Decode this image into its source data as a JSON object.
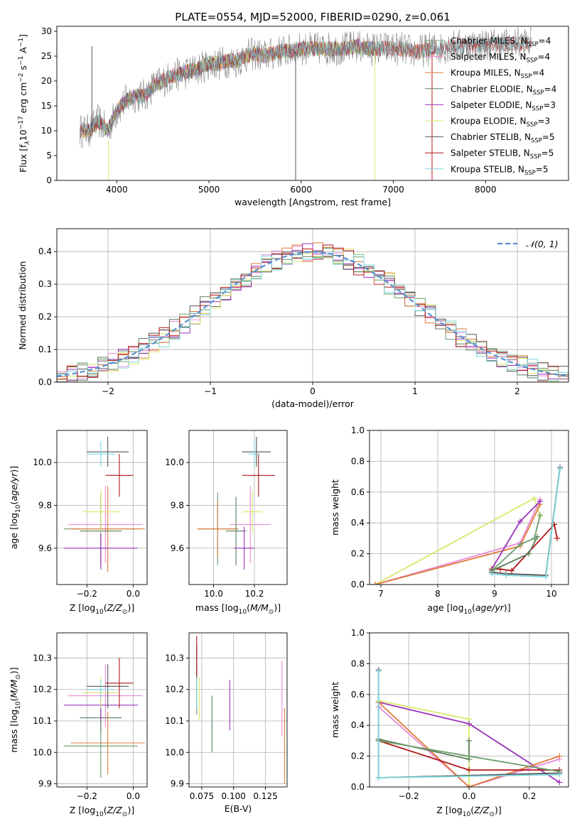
{
  "colors": {
    "Chabrier MILES": "#6b9d6b",
    "Salpeter MILES": "#e88ad8",
    "Kroupa MILES": "#e07b39",
    "Chabrier ELODIE": "#5b7d5b",
    "Salpeter ELODIE": "#9b33bb",
    "Kroupa ELODIE": "#d8e86a",
    "Chabrier STELIB": "#555555",
    "Salpeter STELIB": "#b01818",
    "Kroupa STELIB": "#7dd8e0",
    "gauss": "#5b8fd4",
    "axis": "#000000",
    "grid": "#b0b0b0"
  },
  "chart_data": [
    {
      "type": "line",
      "title": "PLATE=0554, MJD=52000, FIBERID=0290, z=0.061",
      "xlabel": "wavelength [Angstrom, rest frame]",
      "ylabel_parts": [
        "Flux [f",
        "λ",
        "10",
        "−17",
        " erg cm",
        "−2",
        " s",
        "−1",
        " A",
        "−1",
        "]"
      ],
      "xlim": [
        3350,
        8900
      ],
      "ylim": [
        0,
        31
      ],
      "xticks": [
        4000,
        5000,
        6000,
        7000,
        8000
      ],
      "yticks": [
        0,
        5,
        10,
        15,
        20,
        25,
        30
      ],
      "grid": false,
      "legend_position": "upper-right",
      "legend": [
        {
          "model": "Chabrier MILES",
          "n": "4"
        },
        {
          "model": "Salpeter MILES",
          "n": "4"
        },
        {
          "model": "Kroupa MILES",
          "n": "4"
        },
        {
          "model": "Chabrier ELODIE",
          "n": "4"
        },
        {
          "model": "Salpeter ELODIE",
          "n": "3"
        },
        {
          "model": "Kroupa ELODIE",
          "n": "3"
        },
        {
          "model": "Chabrier STELIB",
          "n": "5"
        },
        {
          "model": "Salpeter STELIB",
          "n": "5"
        },
        {
          "model": "Kroupa STELIB",
          "n": "5"
        }
      ],
      "legend_sub": "SSP",
      "spectrum": {
        "x": [
          3600,
          3700,
          3800,
          3900,
          4000,
          4100,
          4200,
          4300,
          4400,
          4500,
          4600,
          4700,
          4800,
          4900,
          5000,
          5100,
          5200,
          5300,
          5400,
          5500,
          5600,
          5700,
          5800,
          5900,
          6000,
          6100,
          6200,
          6300,
          6400,
          6500,
          6600,
          6700,
          6800,
          6900,
          7000,
          7100,
          7200,
          7300,
          7400,
          7500,
          7600,
          7700,
          7800,
          7900,
          8000,
          8100,
          8200,
          8300,
          8400,
          8500
        ],
        "y": [
          10,
          10,
          12,
          10,
          14,
          16,
          17,
          17,
          19,
          20,
          21,
          21.5,
          22,
          22.5,
          23.5,
          23.5,
          24,
          24,
          25,
          25.5,
          25,
          25.5,
          26,
          26,
          26.5,
          26.5,
          26.5,
          26.5,
          26.5,
          26.5,
          27,
          26.5,
          26.5,
          26.5,
          26.5,
          26.5,
          26,
          26,
          26.5,
          26.5,
          27,
          27,
          27.2,
          27.2,
          27.3,
          27.3,
          27.4,
          27.5,
          27.6,
          27.5
        ]
      },
      "spikes": [
        {
          "x": 5940,
          "ymin": 0,
          "ymax": 26,
          "model": "Chabrier STELIB"
        },
        {
          "x": 6800,
          "ymin": 0,
          "ymax": 26,
          "model": "Kroupa ELODIE"
        },
        {
          "x": 7420,
          "ymin": 0,
          "ymax": 26,
          "model": "Salpeter STELIB"
        },
        {
          "x": 3910,
          "ymin": 0,
          "ymax": 8,
          "model": "Kroupa ELODIE"
        },
        {
          "x": 3730,
          "ymin": 10,
          "ymax": 27,
          "model": "Chabrier STELIB"
        }
      ]
    },
    {
      "type": "histogram",
      "xlabel": "(data-model)/error",
      "ylabel": "Normed distribution",
      "xlim": [
        -2.5,
        2.5
      ],
      "ylim": [
        0,
        0.47
      ],
      "xticks": [
        -2,
        -1,
        0,
        1,
        2
      ],
      "yticks": [
        0.0,
        0.1,
        0.2,
        0.3,
        0.4
      ],
      "grid": true,
      "legend_position": "upper-right",
      "legend": [
        "𝒩(0, 1)"
      ],
      "bin_width": 0.1,
      "bin_start": -2.5,
      "series": [
        {
          "name": "Chabrier MILES",
          "offset": 0.01
        },
        {
          "name": "Salpeter MILES",
          "offset": 0.03
        },
        {
          "name": "Kroupa MILES",
          "offset": -0.02
        },
        {
          "name": "Chabrier ELODIE",
          "offset": 0.02
        },
        {
          "name": "Salpeter ELODIE",
          "offset": -0.01
        },
        {
          "name": "Kroupa ELODIE",
          "offset": -0.03
        },
        {
          "name": "Chabrier STELIB",
          "offset": 0.0
        },
        {
          "name": "Salpeter STELIB",
          "offset": 0.015
        },
        {
          "name": "Kroupa STELIB",
          "offset": -0.015
        }
      ]
    },
    {
      "type": "errorbar",
      "xlabel": "Z [log10(Z/Z⊙)]",
      "ylabel": "age  [log10(age/yr)]",
      "xlim": [
        -0.33,
        0.06
      ],
      "ylim": [
        9.43,
        10.15
      ],
      "xticks": [
        -0.2,
        0.0
      ],
      "yticks": [
        9.6,
        9.8,
        10.0
      ],
      "grid": true,
      "points": [
        {
          "series": "Chabrier MILES",
          "x": -0.14,
          "xerr": 0.16,
          "y": 9.69,
          "yerr": 0.17
        },
        {
          "series": "Salpeter MILES",
          "x": -0.12,
          "xerr": 0.16,
          "y": 9.71,
          "yerr": 0.18
        },
        {
          "series": "Kroupa MILES",
          "x": -0.11,
          "xerr": 0.16,
          "y": 9.69,
          "yerr": 0.2
        },
        {
          "series": "Chabrier ELODIE",
          "x": -0.14,
          "xerr": 0.09,
          "y": 9.68,
          "yerr": 0.16
        },
        {
          "series": "Salpeter ELODIE",
          "x": -0.14,
          "xerr": 0.16,
          "y": 9.6,
          "yerr": 0.1
        },
        {
          "series": "Kroupa ELODIE",
          "x": -0.14,
          "xerr": 0.08,
          "y": 9.77,
          "yerr": 0.1
        },
        {
          "series": "Chabrier STELIB",
          "x": -0.11,
          "xerr": 0.09,
          "y": 10.05,
          "yerr": 0.07
        },
        {
          "series": "Salpeter STELIB",
          "x": -0.06,
          "xerr": 0.06,
          "y": 9.94,
          "yerr": 0.1
        },
        {
          "series": "Kroupa STELIB",
          "x": -0.14,
          "xerr": 0.06,
          "y": 10.04,
          "yerr": 0.06
        }
      ]
    },
    {
      "type": "errorbar",
      "xlabel": "mass [log10(M/M⊙)]",
      "ylabel": "",
      "xlim": [
        9.88,
        10.36
      ],
      "ylim": [
        9.43,
        10.15
      ],
      "xticks": [
        10.0,
        10.2
      ],
      "yticks": [
        9.6,
        9.8,
        10.0
      ],
      "grid": true,
      "points": [
        {
          "series": "Chabrier MILES",
          "x": 10.02,
          "xerr": 0.1,
          "y": 9.69,
          "yerr": 0.17
        },
        {
          "series": "Salpeter MILES",
          "x": 10.18,
          "xerr": 0.1,
          "y": 9.71,
          "yerr": 0.18
        },
        {
          "series": "Kroupa MILES",
          "x": 10.02,
          "xerr": 0.1,
          "y": 9.69,
          "yerr": 0.13
        },
        {
          "series": "Chabrier ELODIE",
          "x": 10.11,
          "xerr": 0.05,
          "y": 9.68,
          "yerr": 0.16
        },
        {
          "series": "Salpeter ELODIE",
          "x": 10.15,
          "xerr": 0.05,
          "y": 9.6,
          "yerr": 0.1
        },
        {
          "series": "Kroupa ELODIE",
          "x": 10.19,
          "xerr": 0.05,
          "y": 9.77,
          "yerr": 0.1
        },
        {
          "series": "Chabrier STELIB",
          "x": 10.21,
          "xerr": 0.07,
          "y": 10.05,
          "yerr": 0.07
        },
        {
          "series": "Salpeter STELIB",
          "x": 10.22,
          "xerr": 0.08,
          "y": 9.94,
          "yerr": 0.1
        },
        {
          "series": "Kroupa STELIB",
          "x": 10.2,
          "xerr": 0.03,
          "y": 10.04,
          "yerr": 0.06
        }
      ]
    },
    {
      "type": "line",
      "xlabel": "age  [log10(age/yr)]",
      "ylabel": "mass weight",
      "xlim": [
        6.8,
        10.3
      ],
      "ylim": [
        0,
        1.0
      ],
      "xticks": [
        7,
        8,
        9,
        10
      ],
      "yticks": [
        0.0,
        0.2,
        0.4,
        0.6,
        0.8,
        1.0
      ],
      "grid": true,
      "series": [
        {
          "name": "Kroupa ELODIE",
          "x": [
            6.9,
            9.7,
            9.8
          ],
          "y": [
            0.0,
            0.56,
            0.44
          ]
        },
        {
          "name": "Salpeter MILES",
          "x": [
            6.9,
            9.45,
            9.8
          ],
          "y": [
            0.0,
            0.27,
            0.55
          ]
        },
        {
          "name": "Kroupa MILES",
          "x": [
            6.9,
            9.45,
            9.8
          ],
          "y": [
            0.0,
            0.25,
            0.52
          ]
        },
        {
          "name": "Salpeter ELODIE",
          "x": [
            8.95,
            9.45,
            9.8
          ],
          "y": [
            0.1,
            0.41,
            0.54
          ]
        },
        {
          "name": "Salpeter STELIB",
          "x": [
            8.95,
            9.1,
            9.3,
            10.05,
            10.1
          ],
          "y": [
            0.1,
            0.1,
            0.09,
            0.39,
            0.3
          ]
        },
        {
          "name": "Chabrier ELODIE",
          "x": [
            8.95,
            9.6,
            9.75
          ],
          "y": [
            0.09,
            0.2,
            0.31
          ]
        },
        {
          "name": "Chabrier MILES",
          "x": [
            8.95,
            9.45,
            9.7,
            9.8
          ],
          "y": [
            0.09,
            0.26,
            0.3,
            0.45
          ]
        },
        {
          "name": "Chabrier STELIB",
          "x": [
            8.95,
            9.2,
            9.9,
            10.15
          ],
          "y": [
            0.08,
            0.07,
            0.06,
            0.76
          ]
        },
        {
          "name": "Kroupa STELIB",
          "x": [
            8.95,
            9.2,
            9.9,
            10.15
          ],
          "y": [
            0.07,
            0.06,
            0.05,
            0.75
          ]
        }
      ]
    },
    {
      "type": "errorbar",
      "xlabel": "Z [log10(Z/Z⊙)]",
      "ylabel": "mass [log10(M/M⊙)]",
      "xlim": [
        -0.33,
        0.06
      ],
      "ylim": [
        9.89,
        10.38
      ],
      "xticks": [
        -0.2,
        0.0
      ],
      "yticks": [
        9.9,
        10.0,
        10.1,
        10.2,
        10.3
      ],
      "grid": true,
      "points": [
        {
          "series": "Chabrier MILES",
          "x": -0.14,
          "xerr": 0.16,
          "y": 10.02,
          "yerr": 0.1
        },
        {
          "series": "Salpeter MILES",
          "x": -0.12,
          "xerr": 0.16,
          "y": 10.18,
          "yerr": 0.1
        },
        {
          "series": "Kroupa MILES",
          "x": -0.11,
          "xerr": 0.16,
          "y": 10.03,
          "yerr": 0.1
        },
        {
          "series": "Chabrier ELODIE",
          "x": -0.14,
          "xerr": 0.09,
          "y": 10.11,
          "yerr": 0.05
        },
        {
          "series": "Salpeter ELODIE",
          "x": -0.14,
          "xerr": 0.16,
          "y": 10.15,
          "yerr": 0.05
        },
        {
          "series": "Kroupa ELODIE",
          "x": -0.14,
          "xerr": 0.08,
          "y": 10.19,
          "yerr": 0.05
        },
        {
          "series": "Chabrier STELIB",
          "x": -0.11,
          "xerr": 0.09,
          "y": 10.21,
          "yerr": 0.07
        },
        {
          "series": "Salpeter STELIB",
          "x": -0.06,
          "xerr": 0.06,
          "y": 10.22,
          "yerr": 0.08
        },
        {
          "series": "Kroupa STELIB",
          "x": -0.14,
          "xerr": 0.06,
          "y": 10.2,
          "yerr": 0.03
        }
      ]
    },
    {
      "type": "errorbar",
      "xlabel": "E(B-V)",
      "ylabel": "",
      "xlim": [
        0.065,
        0.142
      ],
      "ylim": [
        9.89,
        10.38
      ],
      "xticks": [
        0.075,
        0.1,
        0.125
      ],
      "xtick_labels": [
        "0.075",
        "0.100",
        "0.125"
      ],
      "yticks": [
        9.9,
        10.0,
        10.1,
        10.2,
        10.3
      ],
      "grid": true,
      "points": [
        {
          "series": "Chabrier MILES",
          "x": 0.071,
          "xerr": 0,
          "y": 10.18,
          "yerr": 0.06
        },
        {
          "series": "Salpeter MILES",
          "x": 0.138,
          "xerr": 0,
          "y": 10.17,
          "yerr": 0.12
        },
        {
          "series": "Kroupa MILES",
          "x": 0.14,
          "xerr": 0,
          "y": 10.02,
          "yerr": 0.12
        },
        {
          "series": "Chabrier ELODIE",
          "x": 0.083,
          "xerr": 0,
          "y": 10.09,
          "yerr": 0.09
        },
        {
          "series": "Salpeter ELODIE",
          "x": 0.097,
          "xerr": 0,
          "y": 10.15,
          "yerr": 0.08
        },
        {
          "series": "Kroupa ELODIE",
          "x": 0.073,
          "xerr": 0,
          "y": 10.17,
          "yerr": 0.07
        },
        {
          "series": "Chabrier STELIB",
          "x": 0.071,
          "xerr": 0,
          "y": 10.29,
          "yerr": 0.05
        },
        {
          "series": "Salpeter STELIB",
          "x": 0.071,
          "xerr": 0,
          "y": 10.3,
          "yerr": 0.07
        },
        {
          "series": "Kroupa STELIB",
          "x": 0.071,
          "xerr": 0,
          "y": 10.19,
          "yerr": 0.05
        }
      ]
    },
    {
      "type": "line",
      "xlabel": "Z [log10(Z/Z⊙)]",
      "ylabel": "mass weight",
      "xlim": [
        -0.33,
        0.33
      ],
      "ylim": [
        0,
        1.0
      ],
      "xticks": [
        -0.2,
        0.0,
        0.2
      ],
      "yticks": [
        0.0,
        0.2,
        0.4,
        0.6,
        0.8,
        1.0
      ],
      "grid": true,
      "series": [
        {
          "name": "Kroupa ELODIE",
          "x": [
            -0.3,
            0.0,
            0.0
          ],
          "y": [
            0.56,
            0.44,
            0.0
          ]
        },
        {
          "name": "Salpeter ELODIE",
          "x": [
            -0.3,
            0.0,
            0.3
          ],
          "y": [
            0.55,
            0.41,
            0.03
          ]
        },
        {
          "name": "Salpeter MILES",
          "x": [
            -0.3,
            0.0,
            0.3
          ],
          "y": [
            0.52,
            0.0,
            0.18
          ]
        },
        {
          "name": "Kroupa MILES",
          "x": [
            -0.3,
            0.0,
            0.3
          ],
          "y": [
            0.55,
            0.0,
            0.2
          ]
        },
        {
          "name": "Chabrier ELODIE",
          "x": [
            -0.3,
            0.0,
            0.0
          ],
          "y": [
            0.31,
            0.18,
            0.3
          ]
        },
        {
          "name": "Salpeter STELIB",
          "x": [
            -0.3,
            0.0,
            0.3
          ],
          "y": [
            0.3,
            0.11,
            0.11
          ]
        },
        {
          "name": "Chabrier MILES",
          "x": [
            -0.3,
            0.0,
            0.3
          ],
          "y": [
            0.3,
            0.2,
            0.1
          ]
        },
        {
          "name": "Chabrier STELIB",
          "x": [
            -0.3,
            -0.3,
            0.3
          ],
          "y": [
            0.76,
            0.06,
            0.09
          ]
        },
        {
          "name": "Kroupa STELIB",
          "x": [
            -0.3,
            -0.3,
            0.3
          ],
          "y": [
            0.75,
            0.06,
            0.08
          ]
        }
      ]
    }
  ]
}
